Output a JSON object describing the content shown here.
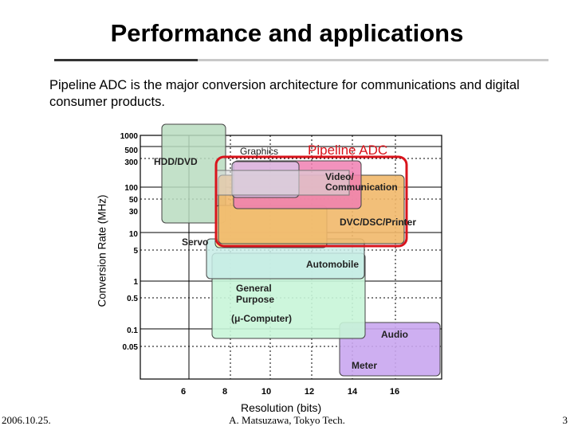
{
  "slide": {
    "title": "Performance  and applications",
    "subtitle": "Pipeline ADC is the major conversion architecture for communications and digital  consumer products.",
    "footer_date": "2006.10.25.",
    "footer_author": "A. Matsuzawa, Tokyo Tech.",
    "page_number": "3"
  },
  "chart": {
    "xlabel": "Resolution (bits)",
    "ylabel": "Conversion Rate (MHz)",
    "x_ticks": [
      "6",
      "8",
      "10",
      "12",
      "14",
      "16"
    ],
    "y_ticks": [
      "1000",
      "500",
      "300",
      "100",
      "50",
      "30",
      "10",
      "5",
      "1",
      "0.5",
      "0.1",
      "0.05"
    ],
    "regions": [
      {
        "name": "HDD/DVD",
        "color": "#b8dcc0"
      },
      {
        "name": "Graphics",
        "color": "#e7a3ee"
      },
      {
        "name": "Video/ Communication",
        "color": "#f07fb2"
      },
      {
        "name": "DVC/DSC/Printer",
        "color": "#f1b86a"
      },
      {
        "name": "Servo",
        "color": "#f4f0a4"
      },
      {
        "name": "Automobile",
        "color": "#c7ece6"
      },
      {
        "name": "General Purpose",
        "color": "#c8f5d8"
      },
      {
        "name": "(μ-Computer)",
        "color": "#c8f5d8"
      },
      {
        "name": "Audio",
        "color": "#c9a6ef"
      },
      {
        "name": "Meter",
        "color": "#c9a6ef"
      }
    ],
    "highlight": {
      "name": "Pipeline ADC",
      "color": "#d9141c"
    }
  }
}
